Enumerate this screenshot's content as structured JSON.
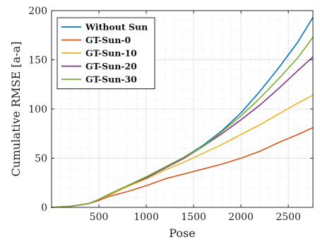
{
  "chart_data": {
    "type": "line",
    "title": "",
    "xlabel": "Pose",
    "ylabel": "Cumulative RMSE [a-a]",
    "xlim": [
      0,
      2760
    ],
    "ylim": [
      0,
      200
    ],
    "xticks": [
      500,
      1000,
      1500,
      2000,
      2500
    ],
    "yticks": [
      0,
      50,
      100,
      150,
      200
    ],
    "grid": true,
    "legend_position": "top-left",
    "series": [
      {
        "name": "Without Sun",
        "color": "#0072bd",
        "x": [
          0,
          200,
          400,
          500,
          600,
          800,
          1000,
          1200,
          1400,
          1600,
          1800,
          2000,
          2200,
          2400,
          2600,
          2760
        ],
        "y": [
          0,
          1,
          4,
          8,
          13,
          22,
          31,
          41,
          51,
          63,
          78,
          96,
          118,
          142,
          168,
          193
        ]
      },
      {
        "name": "GT-Sun-0",
        "color": "#d95319",
        "x": [
          0,
          200,
          400,
          500,
          600,
          800,
          1000,
          1200,
          1400,
          1600,
          1800,
          2000,
          2200,
          2400,
          2600,
          2760
        ],
        "y": [
          0,
          1,
          4,
          7,
          11,
          16,
          22,
          29,
          34,
          39,
          44,
          50,
          57,
          66,
          74,
          81
        ]
      },
      {
        "name": "GT-Sun-10",
        "color": "#edb120",
        "x": [
          0,
          200,
          400,
          500,
          600,
          800,
          1000,
          1200,
          1400,
          1600,
          1800,
          2000,
          2200,
          2400,
          2600,
          2760
        ],
        "y": [
          0,
          1,
          4,
          8,
          12,
          21,
          29,
          38,
          46,
          55,
          64,
          74,
          84,
          95,
          106,
          114
        ]
      },
      {
        "name": "GT-Sun-20",
        "color": "#7e2f8e",
        "x": [
          0,
          200,
          400,
          500,
          600,
          800,
          1000,
          1200,
          1400,
          1600,
          1800,
          2000,
          2200,
          2400,
          2600,
          2760
        ],
        "y": [
          0,
          1,
          4,
          8,
          13,
          22,
          30,
          40,
          50,
          62,
          75,
          89,
          104,
          121,
          139,
          153
        ]
      },
      {
        "name": "GT-Sun-30",
        "color": "#77ac30",
        "x": [
          0,
          200,
          400,
          500,
          600,
          800,
          1000,
          1200,
          1400,
          1600,
          1800,
          2000,
          2200,
          2400,
          2600,
          2760
        ],
        "y": [
          0,
          1,
          4,
          8,
          13,
          22,
          31,
          41,
          51,
          62,
          77,
          93,
          111,
          131,
          152,
          173
        ]
      }
    ]
  }
}
